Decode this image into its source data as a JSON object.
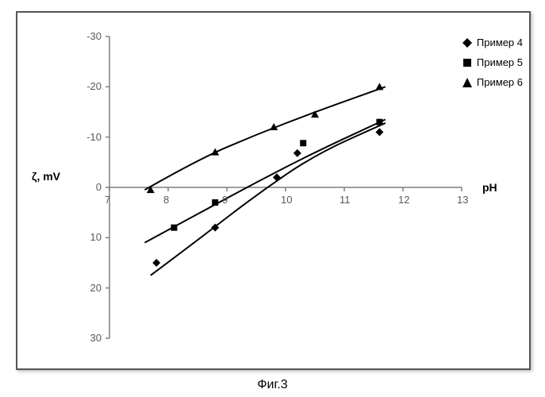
{
  "caption": "Фиг.3",
  "chart": {
    "type": "scatter-line",
    "background_color": "#ffffff",
    "border_color": "#555555",
    "axis_color": "#7f7f7f",
    "grid": false,
    "x": {
      "label": "pH",
      "label_fontsize": 14,
      "ticks": [
        7,
        8,
        9,
        10,
        11,
        12,
        13
      ],
      "lim": [
        7,
        13
      ],
      "tick_color": "#595959",
      "baseline_at_y": 0
    },
    "y": {
      "label": "ζ, mV",
      "label_fontsize": 14,
      "ticks": [
        -30,
        -20,
        -10,
        0,
        10,
        20,
        30
      ],
      "lim_top": -30,
      "lim_bottom": 30,
      "tick_color": "#595959",
      "baseline_at_x": 7
    },
    "marker_size": 10,
    "line_width": 2,
    "line_color": "#000000",
    "marker_fill": "#000000",
    "series": [
      {
        "name": "Пример 4",
        "marker": "diamond",
        "points": [
          {
            "x": 7.8,
            "y": 15.0
          },
          {
            "x": 8.8,
            "y": 8.0
          },
          {
            "x": 9.85,
            "y": -2.0
          },
          {
            "x": 10.2,
            "y": -6.8
          },
          {
            "x": 11.6,
            "y": -11.0
          }
        ],
        "trend": [
          {
            "x": 7.7,
            "y": 17.5
          },
          {
            "x": 8.5,
            "y": 10.5
          },
          {
            "x": 9.5,
            "y": 1.5
          },
          {
            "x": 10.5,
            "y": -6.5
          },
          {
            "x": 11.7,
            "y": -12.8
          }
        ]
      },
      {
        "name": "Пример 5",
        "marker": "square",
        "points": [
          {
            "x": 8.1,
            "y": 8.0
          },
          {
            "x": 8.8,
            "y": 3.0
          },
          {
            "x": 10.3,
            "y": -8.8
          },
          {
            "x": 11.6,
            "y": -13.0
          }
        ],
        "trend": [
          {
            "x": 7.6,
            "y": 11.0
          },
          {
            "x": 8.5,
            "y": 5.3
          },
          {
            "x": 9.5,
            "y": -1.0
          },
          {
            "x": 10.5,
            "y": -7.0
          },
          {
            "x": 11.7,
            "y": -13.5
          }
        ]
      },
      {
        "name": "Пример 6",
        "marker": "triangle",
        "points": [
          {
            "x": 7.7,
            "y": 0.5
          },
          {
            "x": 8.8,
            "y": -7.0
          },
          {
            "x": 9.8,
            "y": -12.0
          },
          {
            "x": 10.5,
            "y": -14.5
          },
          {
            "x": 11.6,
            "y": -20.0
          }
        ],
        "trend": [
          {
            "x": 7.6,
            "y": 0.5
          },
          {
            "x": 8.5,
            "y": -5.5
          },
          {
            "x": 9.5,
            "y": -10.5
          },
          {
            "x": 10.5,
            "y": -15.0
          },
          {
            "x": 11.7,
            "y": -20.0
          }
        ]
      }
    ]
  },
  "legend": {
    "items": [
      {
        "label": "Пример 4",
        "marker": "diamond"
      },
      {
        "label": "Пример 5",
        "marker": "square"
      },
      {
        "label": "Пример 6",
        "marker": "triangle"
      }
    ]
  }
}
